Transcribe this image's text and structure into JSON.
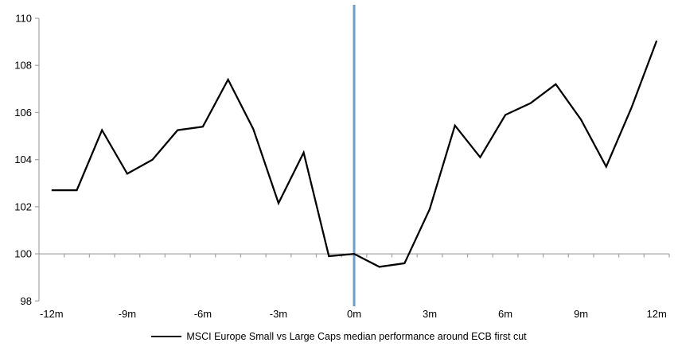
{
  "chart_data": {
    "type": "line",
    "title": "",
    "xlabel": "",
    "ylabel": "",
    "x": [
      -12,
      -11,
      -10,
      -9,
      -8,
      -7,
      -6,
      -5,
      -4,
      -3,
      -2,
      -1,
      0,
      1,
      2,
      3,
      4,
      5,
      6,
      7,
      8,
      9,
      10,
      11,
      12
    ],
    "series": [
      {
        "name": "MSCI Europe Small vs Large Caps median performance around ECB first cut",
        "color": "#000000",
        "values": [
          102.7,
          102.7,
          105.25,
          103.4,
          104.0,
          105.25,
          105.4,
          107.4,
          105.3,
          102.15,
          104.3,
          99.9,
          100.0,
          99.45,
          99.6,
          101.9,
          105.45,
          104.1,
          105.9,
          106.4,
          107.2,
          105.7,
          103.7,
          106.2,
          109.05
        ]
      }
    ],
    "ylim": [
      98,
      110
    ],
    "xlim": [
      -12.5,
      12.5
    ],
    "y_ticks": [
      98,
      100,
      102,
      104,
      106,
      108,
      110
    ],
    "x_tick_values": [
      -12,
      -9,
      -6,
      -3,
      0,
      3,
      6,
      9,
      12
    ],
    "x_tick_labels": [
      "-12m",
      "-9m",
      "-6m",
      "-3m",
      "0m",
      "3m",
      "6m",
      "9m",
      "12m"
    ],
    "baseline_value": 100,
    "event_line": {
      "x": 0,
      "color": "#6E9DCD"
    },
    "axis_color": "#A6A6A6",
    "grid": "baseline-only",
    "legend_position": "bottom-center"
  }
}
